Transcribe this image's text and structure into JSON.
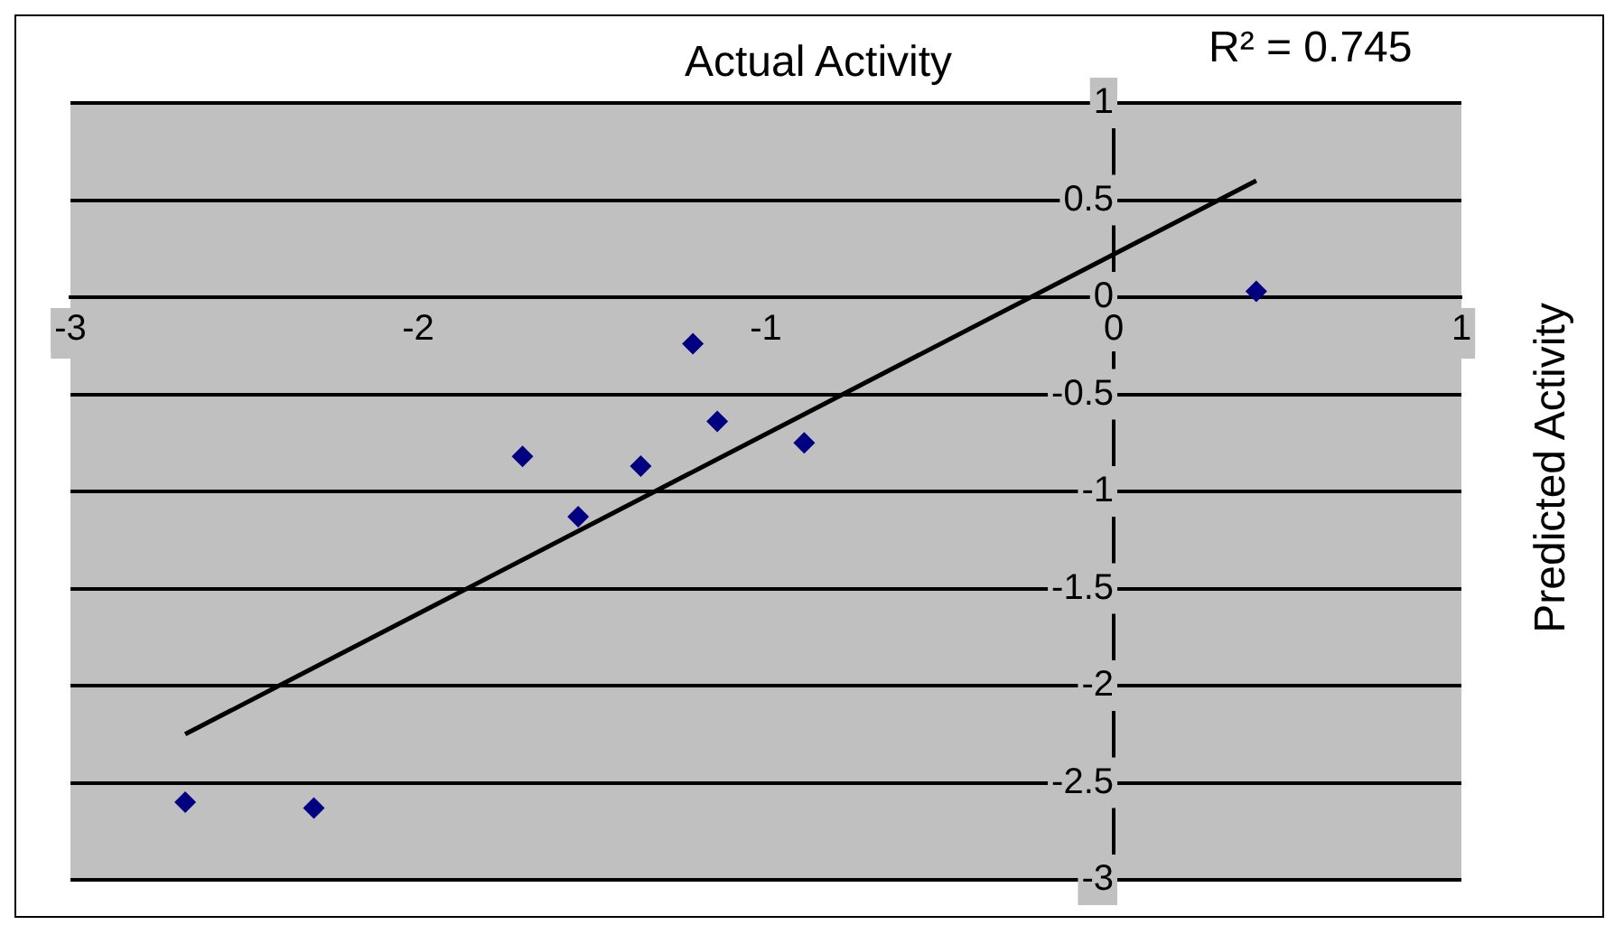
{
  "chart_data": {
    "type": "scatter",
    "xlabel": "Actual Activity",
    "ylabel": "Predicted Activity",
    "annotations": [
      "R² = 0.745"
    ],
    "xlim": [
      -3,
      1
    ],
    "ylim": [
      -3,
      1
    ],
    "xticks": [
      -3,
      -2,
      -1,
      0,
      1
    ],
    "yticks": [
      -3,
      -2.5,
      -2,
      -1.5,
      -1,
      -0.5,
      0,
      0.5,
      1
    ],
    "grid": "y",
    "series": [
      {
        "type": "scatter",
        "color": "#000080",
        "marker": "diamond",
        "x": [
          -2.67,
          -2.3,
          -1.7,
          -1.54,
          -1.36,
          -1.21,
          -1.14,
          -0.89,
          0.41
        ],
        "values": [
          -2.6,
          -2.63,
          -0.82,
          -1.13,
          -0.87,
          -0.24,
          -0.64,
          -0.75,
          0.03
        ]
      },
      {
        "type": "line",
        "color": "#000000",
        "marker": "none",
        "x": [
          -2.67,
          0.41
        ],
        "values": [
          -2.25,
          0.6
        ]
      }
    ]
  }
}
